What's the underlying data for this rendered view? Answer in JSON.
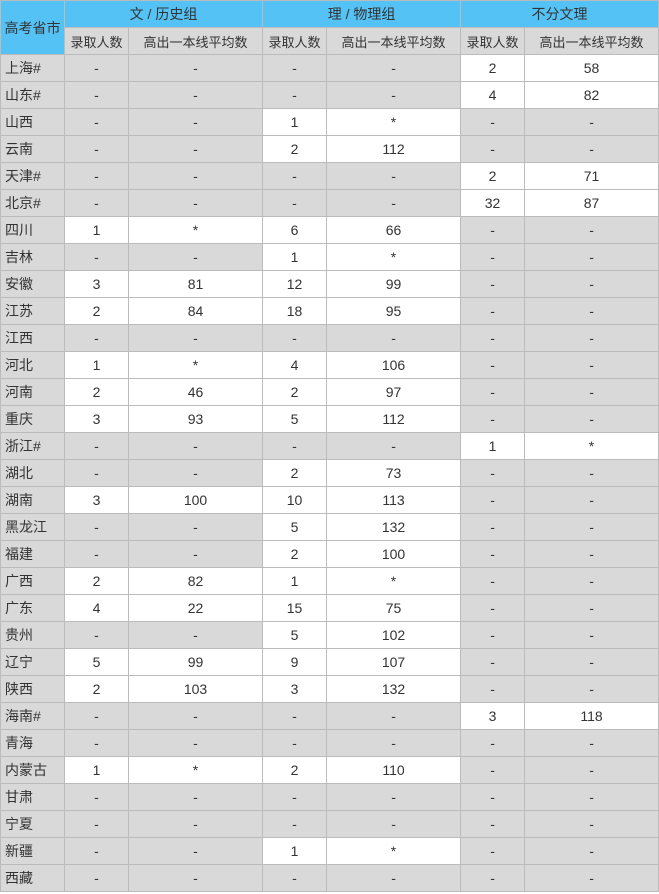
{
  "headers": {
    "province": "高考省市",
    "groups": [
      "文 / 历史组",
      "理 / 物理组",
      "不分文理"
    ],
    "sub": [
      "录取人数",
      "高出一本线平均数"
    ]
  },
  "rows": [
    {
      "p": "上海#",
      "a": [
        "-",
        "-"
      ],
      "b": [
        "-",
        "-"
      ],
      "c": [
        "2",
        "58"
      ]
    },
    {
      "p": "山东#",
      "a": [
        "-",
        "-"
      ],
      "b": [
        "-",
        "-"
      ],
      "c": [
        "4",
        "82"
      ]
    },
    {
      "p": "山西",
      "a": [
        "-",
        "-"
      ],
      "b": [
        "1",
        "*"
      ],
      "c": [
        "-",
        "-"
      ]
    },
    {
      "p": "云南",
      "a": [
        "-",
        "-"
      ],
      "b": [
        "2",
        "112"
      ],
      "c": [
        "-",
        "-"
      ]
    },
    {
      "p": "天津#",
      "a": [
        "-",
        "-"
      ],
      "b": [
        "-",
        "-"
      ],
      "c": [
        "2",
        "71"
      ]
    },
    {
      "p": "北京#",
      "a": [
        "-",
        "-"
      ],
      "b": [
        "-",
        "-"
      ],
      "c": [
        "32",
        "87"
      ]
    },
    {
      "p": "四川",
      "a": [
        "1",
        "*"
      ],
      "b": [
        "6",
        "66"
      ],
      "c": [
        "-",
        "-"
      ]
    },
    {
      "p": "吉林",
      "a": [
        "-",
        "-"
      ],
      "b": [
        "1",
        "*"
      ],
      "c": [
        "-",
        "-"
      ]
    },
    {
      "p": "安徽",
      "a": [
        "3",
        "81"
      ],
      "b": [
        "12",
        "99"
      ],
      "c": [
        "-",
        "-"
      ]
    },
    {
      "p": "江苏",
      "a": [
        "2",
        "84"
      ],
      "b": [
        "18",
        "95"
      ],
      "c": [
        "-",
        "-"
      ]
    },
    {
      "p": "江西",
      "a": [
        "-",
        "-"
      ],
      "b": [
        "-",
        "-"
      ],
      "c": [
        "-",
        "-"
      ]
    },
    {
      "p": "河北",
      "a": [
        "1",
        "*"
      ],
      "b": [
        "4",
        "106"
      ],
      "c": [
        "-",
        "-"
      ]
    },
    {
      "p": "河南",
      "a": [
        "2",
        "46"
      ],
      "b": [
        "2",
        "97"
      ],
      "c": [
        "-",
        "-"
      ]
    },
    {
      "p": "重庆",
      "a": [
        "3",
        "93"
      ],
      "b": [
        "5",
        "112"
      ],
      "c": [
        "-",
        "-"
      ]
    },
    {
      "p": "浙江#",
      "a": [
        "-",
        "-"
      ],
      "b": [
        "-",
        "-"
      ],
      "c": [
        "1",
        "*"
      ]
    },
    {
      "p": "湖北",
      "a": [
        "-",
        "-"
      ],
      "b": [
        "2",
        "73"
      ],
      "c": [
        "-",
        "-"
      ]
    },
    {
      "p": "湖南",
      "a": [
        "3",
        "100"
      ],
      "b": [
        "10",
        "113"
      ],
      "c": [
        "-",
        "-"
      ]
    },
    {
      "p": "黑龙江",
      "a": [
        "-",
        "-"
      ],
      "b": [
        "5",
        "132"
      ],
      "c": [
        "-",
        "-"
      ]
    },
    {
      "p": "福建",
      "a": [
        "-",
        "-"
      ],
      "b": [
        "2",
        "100"
      ],
      "c": [
        "-",
        "-"
      ]
    },
    {
      "p": "广西",
      "a": [
        "2",
        "82"
      ],
      "b": [
        "1",
        "*"
      ],
      "c": [
        "-",
        "-"
      ]
    },
    {
      "p": "广东",
      "a": [
        "4",
        "22"
      ],
      "b": [
        "15",
        "75"
      ],
      "c": [
        "-",
        "-"
      ]
    },
    {
      "p": "贵州",
      "a": [
        "-",
        "-"
      ],
      "b": [
        "5",
        "102"
      ],
      "c": [
        "-",
        "-"
      ]
    },
    {
      "p": "辽宁",
      "a": [
        "5",
        "99"
      ],
      "b": [
        "9",
        "107"
      ],
      "c": [
        "-",
        "-"
      ]
    },
    {
      "p": "陕西",
      "a": [
        "2",
        "103"
      ],
      "b": [
        "3",
        "132"
      ],
      "c": [
        "-",
        "-"
      ]
    },
    {
      "p": "海南#",
      "a": [
        "-",
        "-"
      ],
      "b": [
        "-",
        "-"
      ],
      "c": [
        "3",
        "118"
      ]
    },
    {
      "p": "青海",
      "a": [
        "-",
        "-"
      ],
      "b": [
        "-",
        "-"
      ],
      "c": [
        "-",
        "-"
      ]
    },
    {
      "p": "内蒙古",
      "a": [
        "1",
        "*"
      ],
      "b": [
        "2",
        "110"
      ],
      "c": [
        "-",
        "-"
      ]
    },
    {
      "p": "甘肃",
      "a": [
        "-",
        "-"
      ],
      "b": [
        "-",
        "-"
      ],
      "c": [
        "-",
        "-"
      ]
    },
    {
      "p": "宁夏",
      "a": [
        "-",
        "-"
      ],
      "b": [
        "-",
        "-"
      ],
      "c": [
        "-",
        "-"
      ]
    },
    {
      "p": "新疆",
      "a": [
        "-",
        "-"
      ],
      "b": [
        "1",
        "*"
      ],
      "c": [
        "-",
        "-"
      ]
    },
    {
      "p": "西藏",
      "a": [
        "-",
        "-"
      ],
      "b": [
        "-",
        "-"
      ],
      "c": [
        "-",
        "-"
      ]
    }
  ],
  "colors": {
    "header_bg": "#55c2f5",
    "grey_bg": "#d9d9d9",
    "white_bg": "#ffffff",
    "border": "#bbbbbb"
  }
}
